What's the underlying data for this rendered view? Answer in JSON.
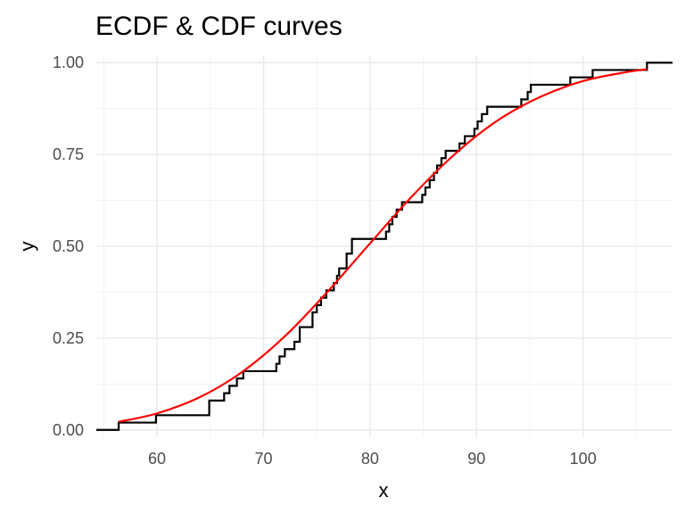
{
  "chart_data": {
    "type": "line",
    "title": "ECDF & CDF curves",
    "xlabel": "x",
    "ylabel": "y",
    "xlim": [
      54.3,
      108.4
    ],
    "ylim": [
      -0.02,
      1.02
    ],
    "x_ticks": [
      60,
      70,
      80,
      90,
      100
    ],
    "x_tick_labels": [
      "60",
      "70",
      "80",
      "90",
      "100"
    ],
    "y_ticks": [
      0,
      0.25,
      0.5,
      0.75,
      1
    ],
    "y_tick_labels": [
      "0.00",
      "0.25",
      "0.50",
      "0.75",
      "1.00"
    ],
    "grid": true,
    "legend": "none",
    "series": [
      {
        "style": "step",
        "color": "#000000",
        "x": [
          54.3,
          56.4,
          59.9,
          64.9,
          66.3,
          66.8,
          67.5,
          68.1,
          71.2,
          71.5,
          72.0,
          72.9,
          73.4,
          74.6,
          75.0,
          75.4,
          75.9,
          76.6,
          76.9,
          77.1,
          77.8,
          78.3,
          79.6,
          81.5,
          81.8,
          82.1,
          82.5,
          83.0,
          84.9,
          85.2,
          85.6,
          86.0,
          86.3,
          86.7,
          87.1,
          88.4,
          88.9,
          89.8,
          90.1,
          90.5,
          90.7,
          91.0,
          94.2,
          94.8,
          95.1,
          98.8,
          100.9,
          101.3,
          106.0,
          108.4
        ],
        "y": [
          0.0,
          0.02,
          0.04,
          0.08,
          0.1,
          0.12,
          0.14,
          0.16,
          0.18,
          0.2,
          0.22,
          0.24,
          0.28,
          0.32,
          0.34,
          0.36,
          0.38,
          0.4,
          0.42,
          0.44,
          0.48,
          0.52,
          0.52,
          0.54,
          0.56,
          0.58,
          0.6,
          0.62,
          0.64,
          0.66,
          0.68,
          0.7,
          0.72,
          0.74,
          0.76,
          0.78,
          0.8,
          0.82,
          0.84,
          0.86,
          0.86,
          0.88,
          0.9,
          0.92,
          0.94,
          0.96,
          0.98,
          0.98,
          1.0,
          1.0
        ]
      },
      {
        "style": "curve",
        "color": "#ff0000",
        "x": [
          56.4,
          60,
          64,
          68,
          72,
          76,
          80,
          84,
          88,
          92,
          96,
          100,
          104,
          106
        ],
        "y": [
          0.022,
          0.045,
          0.089,
          0.158,
          0.255,
          0.376,
          0.508,
          0.638,
          0.752,
          0.843,
          0.907,
          0.95,
          0.974,
          0.982
        ]
      }
    ]
  }
}
